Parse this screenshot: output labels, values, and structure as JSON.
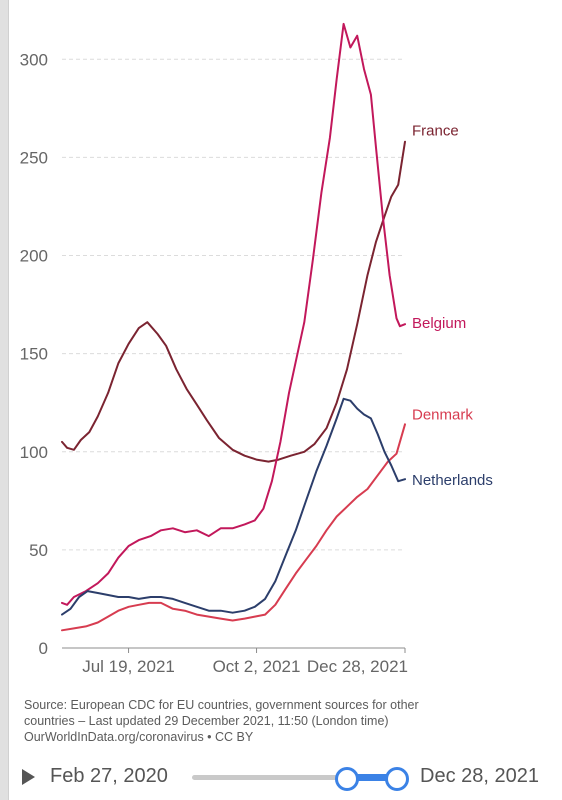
{
  "chart_data": {
    "type": "line",
    "title": "",
    "xlabel": "",
    "ylabel": "",
    "ylim": [
      0,
      320
    ],
    "yticks": [
      0,
      50,
      100,
      150,
      200,
      250,
      300
    ],
    "xticks": [
      "Jul 19, 2021",
      "Oct 2, 2021",
      "Dec 28, 2021"
    ],
    "grid": true,
    "legend": "end-of-line labels",
    "series": [
      {
        "name": "France",
        "color": "#7b2431",
        "points": [
          [
            "2021-06-10",
            105
          ],
          [
            "2021-06-13",
            102
          ],
          [
            "2021-06-17",
            101
          ],
          [
            "2021-06-21",
            106
          ],
          [
            "2021-06-26",
            110
          ],
          [
            "2021-07-01",
            118
          ],
          [
            "2021-07-07",
            130
          ],
          [
            "2021-07-13",
            145
          ],
          [
            "2021-07-19",
            155
          ],
          [
            "2021-07-25",
            163
          ],
          [
            "2021-07-30",
            166
          ],
          [
            "2021-08-05",
            160
          ],
          [
            "2021-08-10",
            154
          ],
          [
            "2021-08-16",
            142
          ],
          [
            "2021-08-22",
            132
          ],
          [
            "2021-08-28",
            124
          ],
          [
            "2021-09-03",
            116
          ],
          [
            "2021-09-10",
            107
          ],
          [
            "2021-09-18",
            101
          ],
          [
            "2021-09-25",
            98
          ],
          [
            "2021-10-02",
            96
          ],
          [
            "2021-10-09",
            95
          ],
          [
            "2021-10-15",
            96
          ],
          [
            "2021-10-22",
            98
          ],
          [
            "2021-10-30",
            100
          ],
          [
            "2021-11-05",
            104
          ],
          [
            "2021-11-12",
            112
          ],
          [
            "2021-11-18",
            125
          ],
          [
            "2021-11-24",
            142
          ],
          [
            "2021-11-30",
            165
          ],
          [
            "2021-12-06",
            190
          ],
          [
            "2021-12-11",
            207
          ],
          [
            "2021-12-16",
            220
          ],
          [
            "2021-12-20",
            230
          ],
          [
            "2021-12-24",
            236
          ],
          [
            "2021-12-28",
            258
          ]
        ]
      },
      {
        "name": "Belgium",
        "color": "#c2185b",
        "points": [
          [
            "2021-06-10",
            23
          ],
          [
            "2021-06-13",
            22
          ],
          [
            "2021-06-17",
            26
          ],
          [
            "2021-06-24",
            29
          ],
          [
            "2021-07-01",
            33
          ],
          [
            "2021-07-07",
            38
          ],
          [
            "2021-07-13",
            46
          ],
          [
            "2021-07-19",
            52
          ],
          [
            "2021-07-25",
            55
          ],
          [
            "2021-08-01",
            57
          ],
          [
            "2021-08-07",
            60
          ],
          [
            "2021-08-14",
            61
          ],
          [
            "2021-08-21",
            59
          ],
          [
            "2021-08-28",
            60
          ],
          [
            "2021-09-04",
            57
          ],
          [
            "2021-09-11",
            61
          ],
          [
            "2021-09-18",
            61
          ],
          [
            "2021-09-25",
            63
          ],
          [
            "2021-10-01",
            65
          ],
          [
            "2021-10-06",
            71
          ],
          [
            "2021-10-11",
            85
          ],
          [
            "2021-10-16",
            105
          ],
          [
            "2021-10-21",
            130
          ],
          [
            "2021-10-26",
            150
          ],
          [
            "2021-10-30",
            166
          ],
          [
            "2021-11-04",
            198
          ],
          [
            "2021-11-09",
            232
          ],
          [
            "2021-11-14",
            260
          ],
          [
            "2021-11-18",
            290
          ],
          [
            "2021-11-22",
            318
          ],
          [
            "2021-11-26",
            306
          ],
          [
            "2021-11-30",
            312
          ],
          [
            "2021-12-04",
            295
          ],
          [
            "2021-12-08",
            282
          ],
          [
            "2021-12-11",
            255
          ],
          [
            "2021-12-15",
            220
          ],
          [
            "2021-12-19",
            190
          ],
          [
            "2021-12-23",
            168
          ],
          [
            "2021-12-25",
            164
          ],
          [
            "2021-12-28",
            165
          ]
        ]
      },
      {
        "name": "Denmark",
        "color": "#d73c50",
        "points": [
          [
            "2021-06-10",
            9
          ],
          [
            "2021-06-17",
            10
          ],
          [
            "2021-06-24",
            11
          ],
          [
            "2021-07-01",
            13
          ],
          [
            "2021-07-07",
            16
          ],
          [
            "2021-07-13",
            19
          ],
          [
            "2021-07-19",
            21
          ],
          [
            "2021-07-25",
            22
          ],
          [
            "2021-07-31",
            23
          ],
          [
            "2021-08-07",
            23
          ],
          [
            "2021-08-14",
            20
          ],
          [
            "2021-08-21",
            19
          ],
          [
            "2021-08-28",
            17
          ],
          [
            "2021-09-04",
            16
          ],
          [
            "2021-09-11",
            15
          ],
          [
            "2021-09-18",
            14
          ],
          [
            "2021-09-25",
            15
          ],
          [
            "2021-10-01",
            16
          ],
          [
            "2021-10-07",
            17
          ],
          [
            "2021-10-13",
            22
          ],
          [
            "2021-10-19",
            30
          ],
          [
            "2021-10-25",
            38
          ],
          [
            "2021-10-31",
            45
          ],
          [
            "2021-11-06",
            52
          ],
          [
            "2021-11-12",
            60
          ],
          [
            "2021-11-18",
            67
          ],
          [
            "2021-11-24",
            72
          ],
          [
            "2021-11-30",
            77
          ],
          [
            "2021-12-06",
            81
          ],
          [
            "2021-12-12",
            88
          ],
          [
            "2021-12-18",
            95
          ],
          [
            "2021-12-23",
            99
          ],
          [
            "2021-12-28",
            114
          ]
        ]
      },
      {
        "name": "Netherlands",
        "color": "#2c3e6b",
        "points": [
          [
            "2021-06-10",
            17
          ],
          [
            "2021-06-15",
            20
          ],
          [
            "2021-06-20",
            26
          ],
          [
            "2021-06-25",
            29
          ],
          [
            "2021-07-01",
            28
          ],
          [
            "2021-07-07",
            27
          ],
          [
            "2021-07-13",
            26
          ],
          [
            "2021-07-19",
            26
          ],
          [
            "2021-07-25",
            25
          ],
          [
            "2021-08-01",
            26
          ],
          [
            "2021-08-07",
            26
          ],
          [
            "2021-08-14",
            25
          ],
          [
            "2021-08-21",
            23
          ],
          [
            "2021-08-28",
            21
          ],
          [
            "2021-09-04",
            19
          ],
          [
            "2021-09-11",
            19
          ],
          [
            "2021-09-18",
            18
          ],
          [
            "2021-09-25",
            19
          ],
          [
            "2021-10-01",
            21
          ],
          [
            "2021-10-07",
            25
          ],
          [
            "2021-10-13",
            34
          ],
          [
            "2021-10-19",
            47
          ],
          [
            "2021-10-25",
            60
          ],
          [
            "2021-10-31",
            75
          ],
          [
            "2021-11-06",
            90
          ],
          [
            "2021-11-12",
            103
          ],
          [
            "2021-11-18",
            117
          ],
          [
            "2021-11-22",
            127
          ],
          [
            "2021-11-26",
            126
          ],
          [
            "2021-11-30",
            122
          ],
          [
            "2021-12-04",
            119
          ],
          [
            "2021-12-08",
            117
          ],
          [
            "2021-12-12",
            109
          ],
          [
            "2021-12-16",
            100
          ],
          [
            "2021-12-20",
            93
          ],
          [
            "2021-12-24",
            85
          ],
          [
            "2021-12-28",
            86
          ]
        ]
      }
    ]
  },
  "source": {
    "line1": "Source: European CDC for EU countries, government sources for other",
    "line2": "countries – Last updated 29 December 2021, 11:50 (London time)",
    "line3": "OurWorldInData.org/coronavirus • CC BY"
  },
  "timeline": {
    "start_label": "Feb 27, 2020",
    "end_label": "Dec 28, 2021",
    "accent_color": "#3b82e6"
  }
}
